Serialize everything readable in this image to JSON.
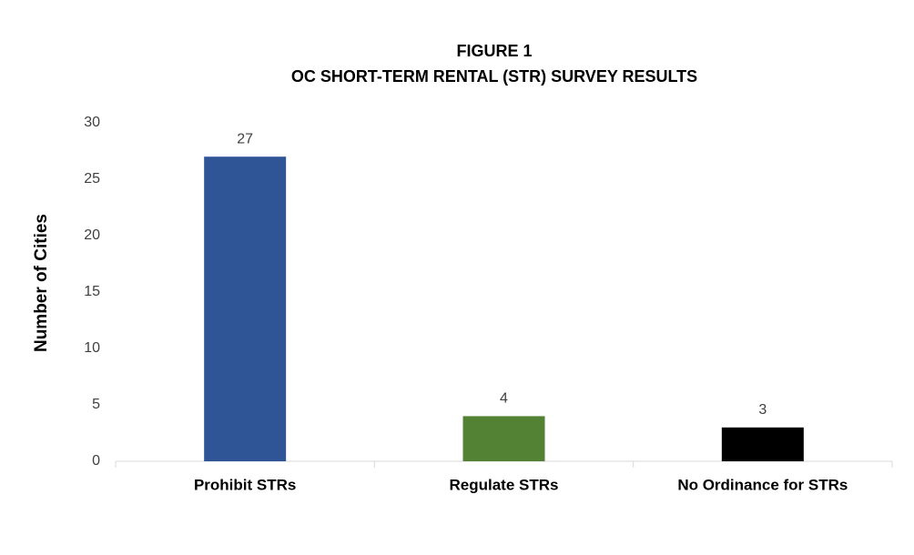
{
  "chart_data": {
    "type": "bar",
    "title": "FIGURE 1",
    "subtitle": "OC SHORT-TERM RENTAL (STR) SURVEY RESULTS",
    "y_label": "Number of Cities",
    "categories": [
      "Prohibit STRs",
      "Regulate STRs",
      "No Ordinance for STRs"
    ],
    "values": [
      27,
      4,
      3
    ],
    "colors": [
      "#2f5597",
      "#548235",
      "#000000"
    ],
    "ylim": [
      0,
      30
    ],
    "yticks": [
      0,
      5,
      10,
      15,
      20,
      25,
      30
    ],
    "grid": false,
    "data_labels": true
  }
}
